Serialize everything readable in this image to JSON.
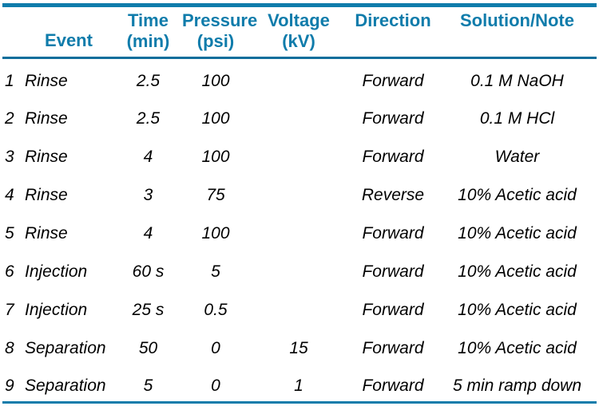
{
  "colors": {
    "accent": "#0f7cab",
    "rule_dark": "#0d6e9b",
    "text": "#000000",
    "background": "#ffffff"
  },
  "table": {
    "columns": {
      "num": {
        "label": ""
      },
      "event": {
        "label": "Event"
      },
      "time": {
        "label": "Time",
        "sub": "(min)"
      },
      "pressure": {
        "label": "Pressure",
        "sub": "(psi)"
      },
      "voltage": {
        "label": "Voltage",
        "sub": "(kV)"
      },
      "direction": {
        "label": "Direction"
      },
      "solution": {
        "label": "Solution/Note"
      }
    },
    "rows": [
      {
        "num": "1",
        "event": "Rinse",
        "time": "2.5",
        "pressure": "100",
        "voltage": "",
        "direction": "Forward",
        "solution": "0.1 M NaOH"
      },
      {
        "num": "2",
        "event": "Rinse",
        "time": "2.5",
        "pressure": "100",
        "voltage": "",
        "direction": "Forward",
        "solution": "0.1 M HCl"
      },
      {
        "num": "3",
        "event": "Rinse",
        "time": "4",
        "pressure": "100",
        "voltage": "",
        "direction": "Forward",
        "solution": "Water"
      },
      {
        "num": "4",
        "event": "Rinse",
        "time": "3",
        "pressure": "75",
        "voltage": "",
        "direction": "Reverse",
        "solution": "10% Acetic acid"
      },
      {
        "num": "5",
        "event": "Rinse",
        "time": "4",
        "pressure": "100",
        "voltage": "",
        "direction": "Forward",
        "solution": "10% Acetic acid"
      },
      {
        "num": "6",
        "event": "Injection",
        "time": "60 s",
        "pressure": "5",
        "voltage": "",
        "direction": "Forward",
        "solution": "10% Acetic acid"
      },
      {
        "num": "7",
        "event": "Injection",
        "time": "25 s",
        "pressure": "0.5",
        "voltage": "",
        "direction": "Forward",
        "solution": "10% Acetic acid"
      },
      {
        "num": "8",
        "event": "Separation",
        "time": "50",
        "pressure": "0",
        "voltage": "15",
        "direction": "Forward",
        "solution": "10% Acetic acid"
      },
      {
        "num": "9",
        "event": "Separation",
        "time": "5",
        "pressure": "0",
        "voltage": "1",
        "direction": "Forward",
        "solution": "5 min ramp down"
      }
    ]
  }
}
